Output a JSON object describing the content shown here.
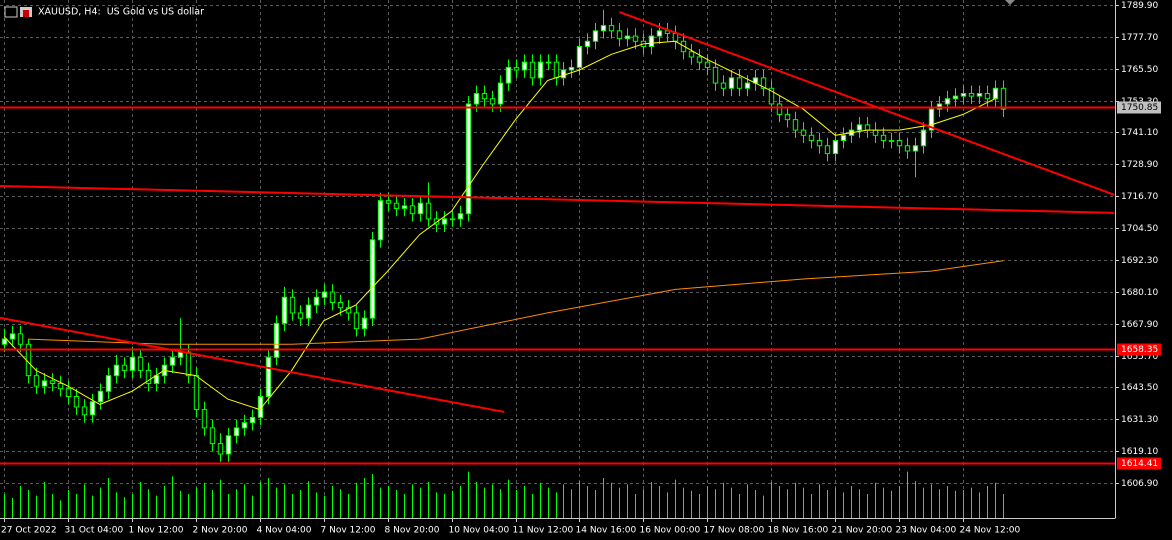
{
  "chart_data": {
    "type": "candlestick",
    "title": "XAUUSD, H4:  US Gold vs US dollar",
    "xlim": [
      -0.5,
      139
    ],
    "ylim": [
      1593.5,
      1791.8
    ],
    "grid": true,
    "colors": {
      "up_body": "#ffffff",
      "down_body": "#000000",
      "outline": "#00ff00",
      "volume": "#00ff00"
    },
    "yticks": [
      {
        "value": 1789.9,
        "label": "1789.90"
      },
      {
        "value": 1777.7,
        "label": "1777.70"
      },
      {
        "value": 1765.5,
        "label": "1765.50"
      },
      {
        "value": 1753.3,
        "label": "1753.30"
      },
      {
        "value": 1741.1,
        "label": "1741.10"
      },
      {
        "value": 1728.9,
        "label": "1728.90"
      },
      {
        "value": 1716.7,
        "label": "1716.70"
      },
      {
        "value": 1704.5,
        "label": "1704.50"
      },
      {
        "value": 1692.3,
        "label": "1692.30"
      },
      {
        "value": 1680.1,
        "label": "1680.10"
      },
      {
        "value": 1667.9,
        "label": "1667.90"
      },
      {
        "value": 1655.7,
        "label": "1655.70"
      },
      {
        "value": 1643.5,
        "label": "1643.50"
      },
      {
        "value": 1631.3,
        "label": "1631.30"
      },
      {
        "value": 1619.1,
        "label": "1619.10"
      },
      {
        "value": 1606.9,
        "label": "1606.90"
      }
    ],
    "xticks": [
      {
        "value": 0,
        "label": "27 Oct 2022"
      },
      {
        "value": 8,
        "label": "31 Oct 04:00"
      },
      {
        "value": 16,
        "label": "1 Nov 12:00"
      },
      {
        "value": 24,
        "label": "2 Nov 20:00"
      },
      {
        "value": 32,
        "label": "4 Nov 04:00"
      },
      {
        "value": 40,
        "label": "7 Nov 12:00"
      },
      {
        "value": 48,
        "label": "8 Nov 20:00"
      },
      {
        "value": 56,
        "label": "10 Nov 04:00"
      },
      {
        "value": 64,
        "label": "11 Nov 12:00"
      },
      {
        "value": 72,
        "label": "14 Nov 16:00"
      },
      {
        "value": 80,
        "label": "16 Nov 00:00"
      },
      {
        "value": 88,
        "label": "17 Nov 08:00"
      },
      {
        "value": 96,
        "label": "18 Nov 16:00"
      },
      {
        "value": 104,
        "label": "21 Nov 20:00"
      },
      {
        "value": 112,
        "label": "23 Nov 04:00"
      },
      {
        "value": 120,
        "label": "24 Nov 12:00"
      }
    ],
    "ohlc": [
      [
        1660,
        1666,
        1657,
        1662
      ],
      [
        1662,
        1667,
        1659,
        1664
      ],
      [
        1664,
        1667,
        1657,
        1660
      ],
      [
        1660,
        1662,
        1645,
        1648
      ],
      [
        1648,
        1651,
        1641,
        1644
      ],
      [
        1644,
        1649,
        1641,
        1646
      ],
      [
        1646,
        1649,
        1642,
        1645
      ],
      [
        1645,
        1648,
        1640,
        1643
      ],
      [
        1643,
        1646,
        1637,
        1640
      ],
      [
        1640,
        1643,
        1633,
        1636
      ],
      [
        1636,
        1639,
        1630,
        1633
      ],
      [
        1633,
        1641,
        1630,
        1638
      ],
      [
        1638,
        1645,
        1635,
        1642
      ],
      [
        1642,
        1651,
        1639,
        1648
      ],
      [
        1648,
        1656,
        1645,
        1652
      ],
      [
        1652,
        1655,
        1647,
        1650
      ],
      [
        1650,
        1659,
        1647,
        1655
      ],
      [
        1655,
        1658,
        1647,
        1650
      ],
      [
        1650,
        1653,
        1642,
        1645
      ],
      [
        1645,
        1651,
        1642,
        1648
      ],
      [
        1648,
        1655,
        1645,
        1652
      ],
      [
        1652,
        1658,
        1649,
        1655
      ],
      [
        1655,
        1670,
        1652,
        1657
      ],
      [
        1657,
        1660,
        1645,
        1648
      ],
      [
        1648,
        1651,
        1632,
        1635
      ],
      [
        1635,
        1638,
        1625,
        1628
      ],
      [
        1628,
        1631,
        1619,
        1622
      ],
      [
        1622,
        1626,
        1615,
        1618
      ],
      [
        1618,
        1628,
        1615,
        1625
      ],
      [
        1625,
        1631,
        1622,
        1628
      ],
      [
        1628,
        1633,
        1625,
        1630
      ],
      [
        1630,
        1635,
        1627,
        1632
      ],
      [
        1632,
        1643,
        1629,
        1640
      ],
      [
        1640,
        1658,
        1637,
        1655
      ],
      [
        1655,
        1671,
        1652,
        1668
      ],
      [
        1668,
        1682,
        1665,
        1678
      ],
      [
        1678,
        1681,
        1669,
        1672
      ],
      [
        1672,
        1675,
        1667,
        1670
      ],
      [
        1670,
        1678,
        1667,
        1675
      ],
      [
        1675,
        1681,
        1672,
        1678
      ],
      [
        1678,
        1683,
        1675,
        1680
      ],
      [
        1680,
        1683,
        1673,
        1676
      ],
      [
        1676,
        1679,
        1671,
        1674
      ],
      [
        1674,
        1677,
        1669,
        1672
      ],
      [
        1672,
        1675,
        1663,
        1666
      ],
      [
        1666,
        1673,
        1663,
        1670
      ],
      [
        1670,
        1703,
        1667,
        1700
      ],
      [
        1700,
        1718,
        1697,
        1715
      ],
      [
        1715,
        1718,
        1711,
        1714
      ],
      [
        1714,
        1717,
        1709,
        1712
      ],
      [
        1712,
        1716,
        1709,
        1713
      ],
      [
        1713,
        1716,
        1707,
        1710
      ],
      [
        1710,
        1717,
        1707,
        1714
      ],
      [
        1714,
        1722,
        1705,
        1708
      ],
      [
        1708,
        1711,
        1703,
        1706
      ],
      [
        1706,
        1711,
        1703,
        1708
      ],
      [
        1708,
        1711,
        1705,
        1708
      ],
      [
        1708,
        1713,
        1705,
        1710
      ],
      [
        1710,
        1755,
        1707,
        1752
      ],
      [
        1752,
        1759,
        1749,
        1756
      ],
      [
        1756,
        1759,
        1751,
        1754
      ],
      [
        1754,
        1757,
        1749,
        1752
      ],
      [
        1752,
        1763,
        1749,
        1760
      ],
      [
        1760,
        1769,
        1757,
        1766
      ],
      [
        1766,
        1769,
        1762,
        1765
      ],
      [
        1765,
        1771,
        1762,
        1768
      ],
      [
        1768,
        1771,
        1759,
        1762
      ],
      [
        1762,
        1771,
        1759,
        1768
      ],
      [
        1768,
        1771,
        1765,
        1768
      ],
      [
        1768,
        1771,
        1759,
        1762
      ],
      [
        1762,
        1768,
        1759,
        1765
      ],
      [
        1765,
        1769,
        1762,
        1766
      ],
      [
        1766,
        1777,
        1763,
        1774
      ],
      [
        1774,
        1779,
        1771,
        1776
      ],
      [
        1776,
        1783,
        1773,
        1780
      ],
      [
        1780,
        1788,
        1777,
        1782
      ],
      [
        1782,
        1785,
        1777,
        1780
      ],
      [
        1780,
        1783,
        1774,
        1777
      ],
      [
        1777,
        1781,
        1774,
        1778
      ],
      [
        1778,
        1781,
        1773,
        1776
      ],
      [
        1776,
        1779,
        1771,
        1774
      ],
      [
        1774,
        1781,
        1771,
        1778
      ],
      [
        1778,
        1783,
        1775,
        1780
      ],
      [
        1780,
        1783,
        1776,
        1779
      ],
      [
        1779,
        1782,
        1773,
        1776
      ],
      [
        1776,
        1779,
        1769,
        1772
      ],
      [
        1772,
        1775,
        1767,
        1770
      ],
      [
        1770,
        1773,
        1765,
        1768
      ],
      [
        1768,
        1771,
        1763,
        1766
      ],
      [
        1766,
        1769,
        1757,
        1760
      ],
      [
        1760,
        1763,
        1755,
        1758
      ],
      [
        1758,
        1765,
        1755,
        1762
      ],
      [
        1762,
        1765,
        1755,
        1758
      ],
      [
        1758,
        1763,
        1755,
        1760
      ],
      [
        1760,
        1765,
        1757,
        1762
      ],
      [
        1762,
        1765,
        1755,
        1758
      ],
      [
        1758,
        1761,
        1749,
        1752
      ],
      [
        1752,
        1755,
        1745,
        1748
      ],
      [
        1748,
        1751,
        1743,
        1746
      ],
      [
        1746,
        1749,
        1739,
        1742
      ],
      [
        1742,
        1745,
        1737,
        1740
      ],
      [
        1740,
        1743,
        1735,
        1738
      ],
      [
        1738,
        1741,
        1733,
        1736
      ],
      [
        1736,
        1739,
        1730,
        1733
      ],
      [
        1733,
        1741,
        1730,
        1738
      ],
      [
        1738,
        1743,
        1735,
        1740
      ],
      [
        1740,
        1745,
        1737,
        1742
      ],
      [
        1742,
        1747,
        1739,
        1744
      ],
      [
        1744,
        1747,
        1739,
        1742
      ],
      [
        1742,
        1745,
        1737,
        1740
      ],
      [
        1740,
        1743,
        1735,
        1738
      ],
      [
        1738,
        1741,
        1735,
        1738
      ],
      [
        1738,
        1741,
        1733,
        1736
      ],
      [
        1736,
        1739,
        1731,
        1734
      ],
      [
        1734,
        1739,
        1724,
        1736
      ],
      [
        1736,
        1745,
        1733,
        1742
      ],
      [
        1742,
        1753,
        1739,
        1750
      ],
      [
        1750,
        1755,
        1747,
        1752
      ],
      [
        1752,
        1757,
        1749,
        1754
      ],
      [
        1754,
        1758,
        1751,
        1755
      ],
      [
        1755,
        1759,
        1752,
        1756
      ],
      [
        1756,
        1759,
        1752,
        1755
      ],
      [
        1755,
        1759,
        1752,
        1756
      ],
      [
        1756,
        1759,
        1751,
        1754
      ],
      [
        1754,
        1761,
        1751,
        1758
      ],
      [
        1758,
        1761,
        1747,
        1750
      ]
    ],
    "volume": [
      30,
      25,
      40,
      35,
      28,
      45,
      30,
      22,
      35,
      30,
      42,
      28,
      38,
      50,
      32,
      26,
      30,
      45,
      36,
      28,
      40,
      52,
      34,
      30,
      38,
      44,
      35,
      48,
      30,
      36,
      42,
      28,
      45,
      50,
      38,
      42,
      30,
      35,
      46,
      32,
      28,
      40,
      36,
      30,
      44,
      50,
      55,
      38,
      40,
      35,
      30,
      42,
      38,
      45,
      32,
      30,
      34,
      40,
      58,
      45,
      38,
      42,
      36,
      48,
      35,
      40,
      30,
      44,
      38,
      32,
      42,
      36,
      46,
      40,
      35,
      50,
      44,
      38,
      42,
      30,
      36,
      45,
      40,
      32,
      48,
      38,
      34,
      30,
      40,
      36,
      44,
      38,
      30,
      42,
      35,
      28,
      45,
      40,
      36,
      44,
      38,
      30,
      42,
      35,
      38,
      32,
      40,
      36,
      30,
      44,
      38,
      34,
      40,
      58,
      46,
      38,
      42,
      36,
      40,
      34,
      35,
      38,
      32,
      40,
      44,
      30
    ],
    "moving_averages": [
      {
        "color": "#ffff00",
        "x": [
          0,
          4,
          8,
          12,
          16,
          20,
          24,
          28,
          32,
          36,
          40,
          44,
          48,
          52,
          56,
          60,
          64,
          68,
          72,
          76,
          80,
          84,
          88,
          92,
          96,
          100,
          104,
          108,
          112,
          116,
          120,
          124
        ],
        "values": [
          1663,
          1650,
          1644,
          1637,
          1642,
          1650,
          1648,
          1639,
          1635,
          1650,
          1669,
          1675,
          1688,
          1702,
          1711,
          1729,
          1746,
          1761,
          1765,
          1771,
          1775,
          1776,
          1769,
          1763,
          1757,
          1750,
          1740,
          1742,
          1742,
          1744,
          1748,
          1754
        ]
      },
      {
        "color": "#ff8c00",
        "x": [
          3,
          20,
          36,
          52,
          68,
          84,
          100,
          116,
          125
        ],
        "values": [
          1662,
          1660,
          1660,
          1662,
          1672,
          1681,
          1685,
          1688,
          1692
        ]
      }
    ],
    "levels": [
      {
        "value": 1750.85,
        "color": "#ff0000",
        "label_color": "#c0c0c0"
      },
      {
        "value": 1658.35,
        "color": "#ff0000",
        "label_color": "#ff0000"
      },
      {
        "value": 1614.41,
        "color": "#ff0000",
        "label_color": "#ff0000"
      }
    ],
    "trendlines": [
      {
        "x": [
          -0.5,
          138.9
        ],
        "y": [
          1720.6,
          1710.3
        ],
        "color": "#ff0000"
      },
      {
        "x": [
          -0.5,
          62.6
        ],
        "y": [
          1670.1,
          1634.1
        ],
        "color": "#ff0000"
      },
      {
        "x": [
          77,
          138.9
        ],
        "y": [
          1787.2,
          1717.2
        ],
        "color": "#ff0000"
      }
    ]
  }
}
